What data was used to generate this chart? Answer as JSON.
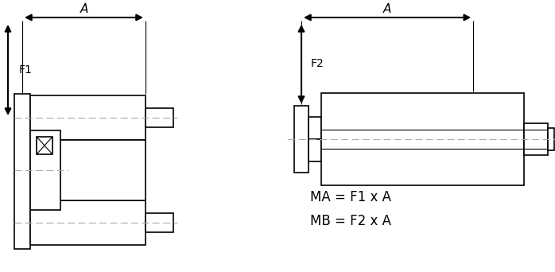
{
  "bg_color": "#ffffff",
  "line_color": "#000000",
  "dash_color": "#aaaaaa",
  "text_color": "#000000",
  "formula1": "MA = F1 x A",
  "formula2": "MB = F2 x A"
}
